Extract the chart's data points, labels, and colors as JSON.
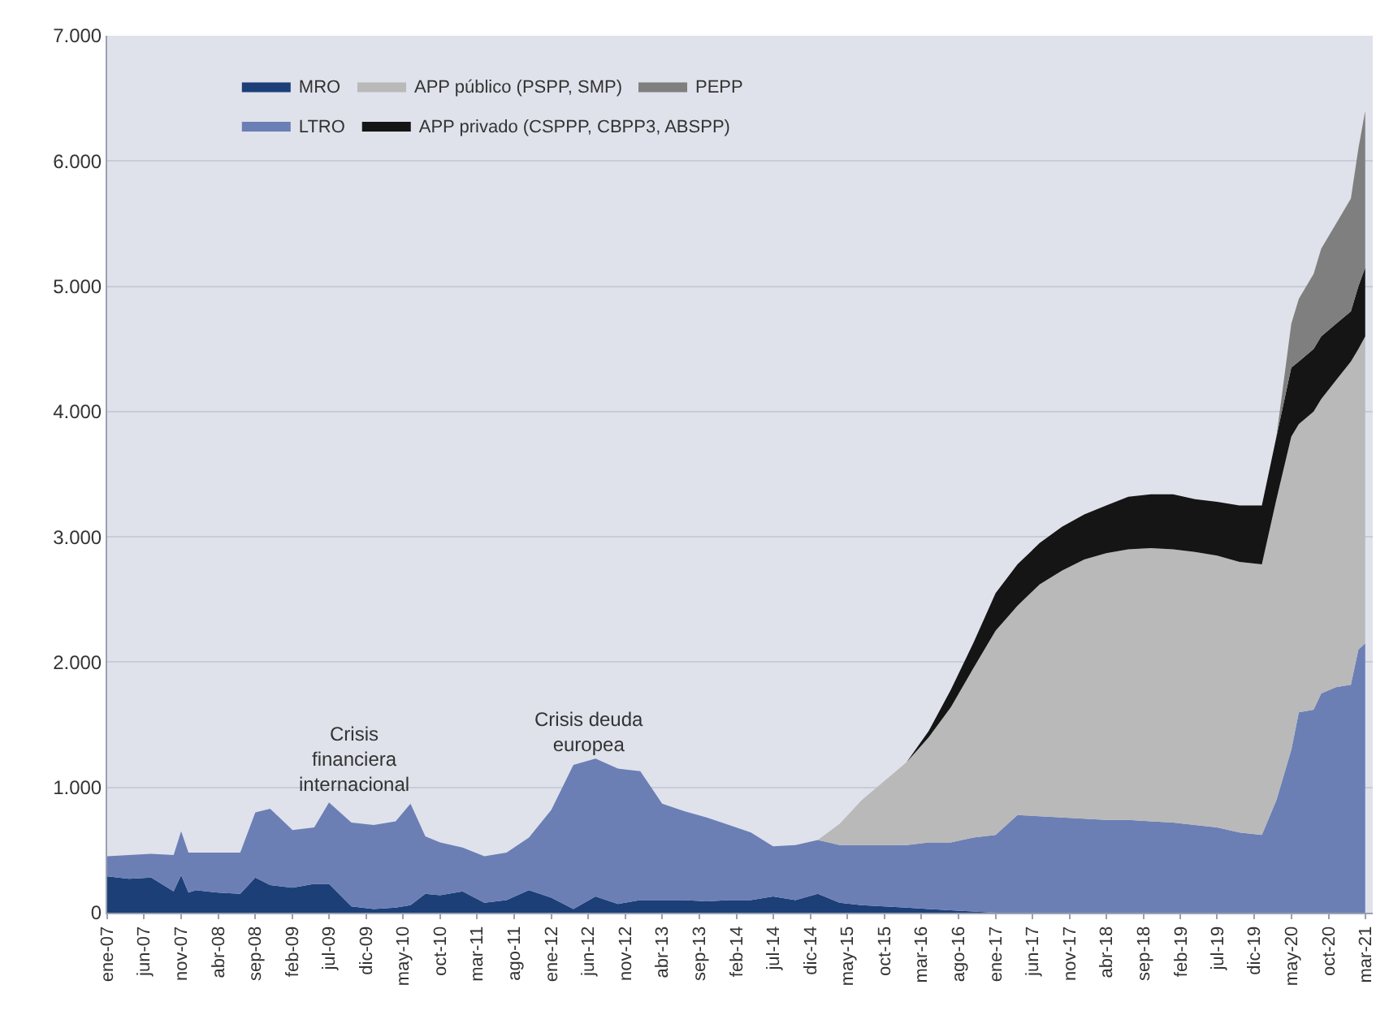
{
  "chart_data": {
    "type": "area",
    "stacked": true,
    "x": [
      "2007-01",
      "2007-04",
      "2007-07",
      "2007-10",
      "2007-11",
      "2007-12",
      "2008-01",
      "2008-04",
      "2008-07",
      "2008-09",
      "2008-11",
      "2009-02",
      "2009-05",
      "2009-07",
      "2009-10",
      "2010-01",
      "2010-04",
      "2010-06",
      "2010-08",
      "2010-10",
      "2011-01",
      "2011-04",
      "2011-07",
      "2011-10",
      "2012-01",
      "2012-04",
      "2012-07",
      "2012-10",
      "2013-01",
      "2013-04",
      "2013-07",
      "2013-10",
      "2014-01",
      "2014-04",
      "2014-07",
      "2014-10",
      "2015-01",
      "2015-04",
      "2015-07",
      "2015-10",
      "2016-01",
      "2016-04",
      "2016-07",
      "2016-10",
      "2017-01",
      "2017-04",
      "2017-07",
      "2017-10",
      "2018-01",
      "2018-04",
      "2018-07",
      "2018-10",
      "2019-01",
      "2019-04",
      "2019-07",
      "2019-10",
      "2020-01",
      "2020-03",
      "2020-05",
      "2020-06",
      "2020-08",
      "2020-09",
      "2020-11",
      "2021-01",
      "2021-02",
      "2021-03"
    ],
    "series": [
      {
        "name": "MRO",
        "color": "#1c3f78",
        "values": [
          290,
          270,
          280,
          170,
          300,
          160,
          180,
          160,
          150,
          280,
          220,
          200,
          230,
          230,
          50,
          30,
          40,
          60,
          150,
          140,
          170,
          80,
          100,
          180,
          120,
          30,
          130,
          70,
          100,
          100,
          100,
          90,
          100,
          100,
          130,
          100,
          150,
          80,
          60,
          50,
          40,
          30,
          20,
          10,
          0,
          0,
          0,
          0,
          0,
          0,
          0,
          0,
          0,
          0,
          0,
          0,
          0,
          0,
          0,
          0,
          0,
          0,
          0,
          0,
          0,
          0
        ]
      },
      {
        "name": "LTRO",
        "color": "#6b7fb5",
        "values": [
          160,
          190,
          190,
          290,
          350,
          320,
          300,
          320,
          330,
          520,
          610,
          460,
          450,
          650,
          670,
          670,
          690,
          810,
          460,
          420,
          350,
          370,
          380,
          420,
          700,
          1150,
          1100,
          1080,
          1030,
          770,
          710,
          670,
          600,
          540,
          400,
          440,
          430,
          460,
          480,
          490,
          500,
          530,
          540,
          590,
          620,
          780,
          770,
          760,
          750,
          740,
          740,
          730,
          720,
          700,
          680,
          640,
          620,
          900,
          1300,
          1600,
          1620,
          1750,
          1800,
          1820,
          2100,
          2150
        ]
      },
      {
        "name": "APP público (PSPP, SMP)",
        "color": "#b9b9b9",
        "values": [
          0,
          0,
          0,
          0,
          0,
          0,
          0,
          0,
          0,
          0,
          0,
          0,
          0,
          0,
          0,
          0,
          0,
          0,
          0,
          0,
          0,
          0,
          0,
          0,
          0,
          0,
          0,
          0,
          0,
          0,
          0,
          0,
          0,
          0,
          0,
          0,
          0,
          170,
          360,
          510,
          660,
          840,
          1080,
          1350,
          1630,
          1670,
          1850,
          1970,
          2070,
          2130,
          2160,
          2180,
          2180,
          2180,
          2170,
          2160,
          2160,
          2400,
          2500,
          2300,
          2380,
          2350,
          2450,
          2580,
          2400,
          2450
        ]
      },
      {
        "name": "APP privado (CSPPP, CBPP3, ABSPP)",
        "color": "#151515",
        "values": [
          0,
          0,
          0,
          0,
          0,
          0,
          0,
          0,
          0,
          0,
          0,
          0,
          0,
          0,
          0,
          0,
          0,
          0,
          0,
          0,
          0,
          0,
          0,
          0,
          0,
          0,
          0,
          0,
          0,
          0,
          0,
          0,
          0,
          0,
          0,
          0,
          0,
          0,
          0,
          0,
          0,
          50,
          140,
          200,
          300,
          330,
          330,
          350,
          360,
          380,
          420,
          430,
          440,
          420,
          430,
          450,
          470,
          500,
          550,
          500,
          500,
          500,
          450,
          400,
          500,
          550
        ]
      },
      {
        "name": "PEPP",
        "color": "#7f7f7f",
        "values": [
          0,
          0,
          0,
          0,
          0,
          0,
          0,
          0,
          0,
          0,
          0,
          0,
          0,
          0,
          0,
          0,
          0,
          0,
          0,
          0,
          0,
          0,
          0,
          0,
          0,
          0,
          0,
          0,
          0,
          0,
          0,
          0,
          0,
          0,
          0,
          0,
          0,
          0,
          0,
          0,
          0,
          0,
          0,
          0,
          0,
          0,
          0,
          0,
          0,
          0,
          0,
          0,
          0,
          0,
          0,
          0,
          0,
          0,
          350,
          500,
          600,
          700,
          800,
          900,
          1100,
          1250
        ]
      }
    ],
    "xlim": [
      "2007-01",
      "2021-04"
    ],
    "xticks": [
      {
        "value": "2007-01",
        "label": "ene-07"
      },
      {
        "value": "2007-06",
        "label": "jun-07"
      },
      {
        "value": "2007-11",
        "label": "nov-07"
      },
      {
        "value": "2008-04",
        "label": "abr-08"
      },
      {
        "value": "2008-09",
        "label": "sep-08"
      },
      {
        "value": "2009-02",
        "label": "feb-09"
      },
      {
        "value": "2009-07",
        "label": "jul-09"
      },
      {
        "value": "2009-12",
        "label": "dic-09"
      },
      {
        "value": "2010-05",
        "label": "may-10"
      },
      {
        "value": "2010-10",
        "label": "oct-10"
      },
      {
        "value": "2011-03",
        "label": "mar-11"
      },
      {
        "value": "2011-08",
        "label": "ago-11"
      },
      {
        "value": "2012-01",
        "label": "ene-12"
      },
      {
        "value": "2012-06",
        "label": "jun-12"
      },
      {
        "value": "2012-11",
        "label": "nov-12"
      },
      {
        "value": "2013-04",
        "label": "abr-13"
      },
      {
        "value": "2013-09",
        "label": "sep-13"
      },
      {
        "value": "2014-02",
        "label": "feb-14"
      },
      {
        "value": "2014-07",
        "label": "jul-14"
      },
      {
        "value": "2014-12",
        "label": "dic-14"
      },
      {
        "value": "2015-05",
        "label": "may-15"
      },
      {
        "value": "2015-10",
        "label": "oct-15"
      },
      {
        "value": "2016-03",
        "label": "mar-16"
      },
      {
        "value": "2016-08",
        "label": "ago-16"
      },
      {
        "value": "2017-01",
        "label": "ene-17"
      },
      {
        "value": "2017-06",
        "label": "jun-17"
      },
      {
        "value": "2017-11",
        "label": "nov-17"
      },
      {
        "value": "2018-04",
        "label": "abr-18"
      },
      {
        "value": "2018-09",
        "label": "sep-18"
      },
      {
        "value": "2019-02",
        "label": "feb-19"
      },
      {
        "value": "2019-07",
        "label": "jul-19"
      },
      {
        "value": "2019-12",
        "label": "dic-19"
      },
      {
        "value": "2020-05",
        "label": "may-20"
      },
      {
        "value": "2020-10",
        "label": "oct-20"
      },
      {
        "value": "2021-03",
        "label": "mar-21"
      }
    ],
    "ylim": [
      0,
      7000
    ],
    "yticks": [
      0,
      {
        "value": 1000,
        "label": "1.000"
      },
      {
        "value": 2000,
        "label": "2.000"
      },
      {
        "value": 3000,
        "label": "3.000"
      },
      {
        "value": 4000,
        "label": "4.000"
      },
      {
        "value": 5000,
        "label": "5.000"
      },
      {
        "value": 6000,
        "label": "6.000"
      },
      {
        "value": 7000,
        "label": "7.000"
      }
    ],
    "grid": "y",
    "legend": "top left",
    "annotations": [
      "Crisis financiera internacional",
      "Crisis deuda europea"
    ]
  }
}
